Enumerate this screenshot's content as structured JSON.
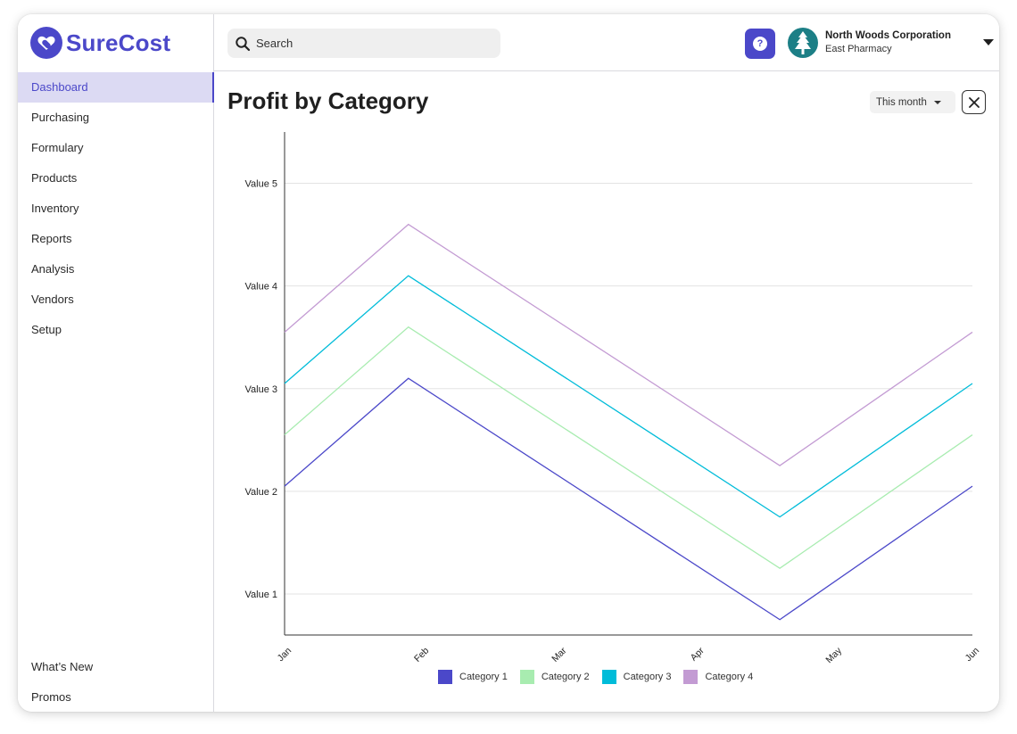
{
  "app": {
    "brand": "SureCost",
    "accent_color": "#4b48c9"
  },
  "sidebar": {
    "items": [
      {
        "label": "Dashboard",
        "active": true
      },
      {
        "label": "Purchasing"
      },
      {
        "label": "Formulary"
      },
      {
        "label": "Products"
      },
      {
        "label": "Inventory"
      },
      {
        "label": "Reports"
      },
      {
        "label": "Analysis"
      },
      {
        "label": "Vendors"
      },
      {
        "label": "Setup"
      }
    ],
    "bottom_items": [
      {
        "label": "What’s New"
      },
      {
        "label": "Promos"
      }
    ]
  },
  "header": {
    "search_placeholder": "Search",
    "help_icon": "question-icon",
    "org": {
      "name": "North Woods Corporation",
      "location": "East Pharmacy",
      "icon": "pine-tree-icon"
    }
  },
  "page": {
    "title": "Profit by Category",
    "period": "This month"
  },
  "chart_data": {
    "type": "line",
    "x": [
      "Jan",
      "Feb",
      "Mar",
      "Apr",
      "May",
      "Jun"
    ],
    "y_tick_labels": [
      "Value 1",
      "Value 2",
      "Value 3",
      "Value 4",
      "Value 5"
    ],
    "ylim": [
      0.6,
      5.5
    ],
    "grid": true,
    "legend_position": "bottom",
    "series": [
      {
        "name": "Category 1",
        "color": "#4b48c9",
        "points": [
          [
            0,
            2.05
          ],
          [
            0.9,
            3.1
          ],
          [
            3.6,
            0.75
          ],
          [
            5,
            2.05
          ]
        ]
      },
      {
        "name": "Category 2",
        "color": "#a8ecb0",
        "points": [
          [
            0,
            2.55
          ],
          [
            0.9,
            3.6
          ],
          [
            3.6,
            1.25
          ],
          [
            5,
            2.55
          ]
        ]
      },
      {
        "name": "Category 3",
        "color": "#00bcd9",
        "points": [
          [
            0,
            3.05
          ],
          [
            0.9,
            4.1
          ],
          [
            3.6,
            1.75
          ],
          [
            5,
            3.05
          ]
        ]
      },
      {
        "name": "Category 4",
        "color": "#c39bd3",
        "points": [
          [
            0,
            3.55
          ],
          [
            0.9,
            4.6
          ],
          [
            3.6,
            2.25
          ],
          [
            5,
            3.55
          ]
        ]
      }
    ]
  }
}
